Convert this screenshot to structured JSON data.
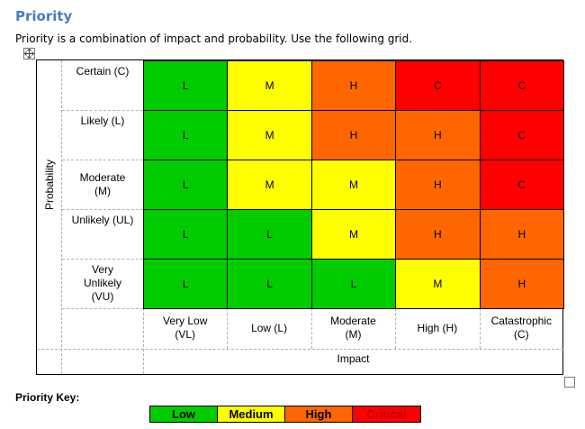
{
  "heading": "Priority",
  "intro": "Priority is a combination of impact and probability.  Use the following grid.",
  "icons": {
    "move_handle": "move-icon",
    "resize_handle": "resize-icon"
  },
  "colors": {
    "low": "#00cc00",
    "medium": "#ffff00",
    "high": "#ff6600",
    "critical": "#ff0000"
  },
  "grid": {
    "probability_label": "Probability",
    "impact_label": "Impact",
    "rows": [
      {
        "label": "Certain (C)",
        "cells": [
          "L",
          "M",
          "H",
          "C",
          "C"
        ],
        "levels": [
          "low",
          "medium",
          "high",
          "critical",
          "critical"
        ]
      },
      {
        "label": "Likely (L)",
        "cells": [
          "L",
          "M",
          "H",
          "H",
          "C"
        ],
        "levels": [
          "low",
          "medium",
          "high",
          "high",
          "critical"
        ]
      },
      {
        "label": "Moderate\n(M)",
        "cells": [
          "L",
          "M",
          "M",
          "H",
          "C"
        ],
        "levels": [
          "low",
          "medium",
          "medium",
          "high",
          "critical"
        ]
      },
      {
        "label": "Unlikely (UL)",
        "cells": [
          "L",
          "L",
          "M",
          "H",
          "H"
        ],
        "levels": [
          "low",
          "low",
          "medium",
          "high",
          "high"
        ]
      },
      {
        "label": "Very\nUnlikely\n(VU)",
        "cells": [
          "L",
          "L",
          "L",
          "M",
          "H"
        ],
        "levels": [
          "low",
          "low",
          "low",
          "medium",
          "high"
        ]
      }
    ],
    "columns": [
      "Very Low\n(VL)",
      "Low (L)",
      "Moderate\n(M)",
      "High (H)",
      "Catastrophic\n(C)"
    ]
  },
  "key": {
    "label": "Priority Key:",
    "items": [
      {
        "label": "Low",
        "level": "low"
      },
      {
        "label": "Medium",
        "level": "medium"
      },
      {
        "label": "High",
        "level": "high"
      },
      {
        "label": "Critical",
        "level": "critical"
      }
    ]
  }
}
